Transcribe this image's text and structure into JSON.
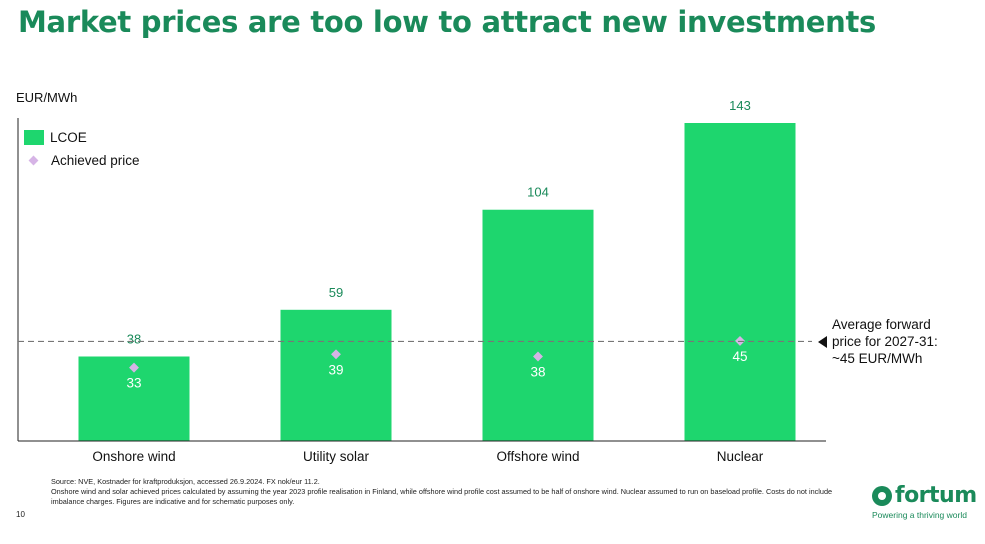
{
  "title": "Market prices are too low to attract new investments",
  "page_number": "10",
  "colors": {
    "title": "#1a8a5a",
    "bar": "#1ed66e",
    "achieved_marker": "#d6b4e6",
    "reference_line": "#777777"
  },
  "annotation": {
    "line1": "Average forward",
    "line2": "price for 2027-31:",
    "line3": "~45 EUR/MWh"
  },
  "source": {
    "line1": "Source: NVE, Kostnader for kraftproduksjon, accessed 26.9.2024. FX nok/eur 11.2.",
    "line2": "Onshore wind and solar achieved prices calculated by assuming the year 2023 profile realisation in Finland, while offshore wind profile cost assumed to be half of onshore wind. Nuclear assumed to run on baseload profile. Costs do not include imbalance charges. Figures are indicative and for schematic purposes only."
  },
  "logo": {
    "name": "fortum",
    "tagline": "Powering a thriving world"
  },
  "chart_data": {
    "type": "bar",
    "ylabel": "EUR/MWh",
    "categories": [
      "Onshore wind",
      "Utility solar",
      "Offshore wind",
      "Nuclear"
    ],
    "series": [
      {
        "name": "LCOE",
        "type": "bar",
        "values": [
          38,
          59,
          104,
          143
        ]
      },
      {
        "name": "Achieved price",
        "type": "scatter",
        "marker": "diamond",
        "values": [
          33,
          39,
          38,
          45
        ]
      }
    ],
    "reference_line": {
      "value": 45,
      "style": "dashed"
    },
    "ylim": [
      0,
      150
    ],
    "grid": false,
    "legend": "top-left"
  }
}
